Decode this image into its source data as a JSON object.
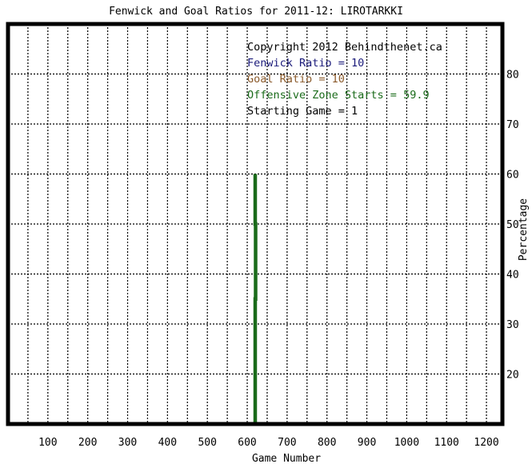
{
  "chart_data": {
    "type": "line",
    "title": "Fenwick and Goal Ratios for 2011-12: LIROTARKKI",
    "xlabel": "Game Number",
    "ylabel": "Percentage",
    "xlim": [
      0,
      1240
    ],
    "ylim": [
      10,
      90
    ],
    "x_ticks": [
      100,
      200,
      300,
      400,
      500,
      600,
      700,
      800,
      900,
      1000,
      1100,
      1200
    ],
    "y_ticks": [
      20,
      30,
      40,
      50,
      60,
      70,
      80
    ],
    "grid": true,
    "series": [
      {
        "name": "Offensive Zone Starts = 59.9",
        "color": "#1a6b1a",
        "points": [
          [
            620,
            10
          ],
          [
            620,
            35
          ],
          [
            621,
            35
          ],
          [
            621,
            50
          ],
          [
            620,
            50
          ],
          [
            620,
            60
          ]
        ]
      }
    ],
    "annotations": [
      {
        "text": "Copyright 2012 Behindthenet.ca",
        "color": "#000000"
      },
      {
        "text": "Fenwick Ratio = 10",
        "color": "#1a1a7a"
      },
      {
        "text": "Goal Ratio = 10",
        "color": "#8a5a2b"
      },
      {
        "text": "Offensive Zone Starts = 59.9",
        "color": "#1a6b1a"
      },
      {
        "text": "Starting Game = 1",
        "color": "#000000"
      }
    ]
  }
}
